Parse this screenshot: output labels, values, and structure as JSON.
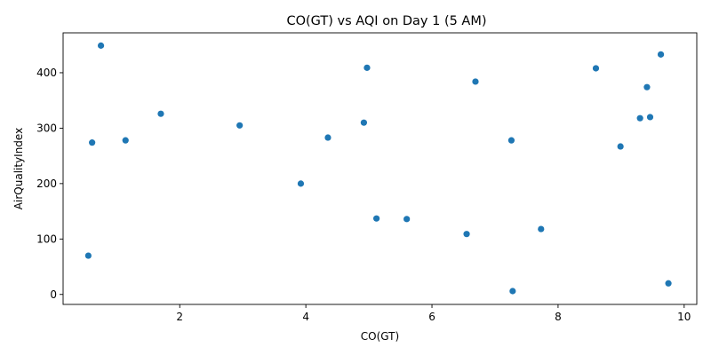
{
  "chart_data": {
    "type": "scatter",
    "title": "CO(GT) vs AQI on Day 1 (5 AM)",
    "xlabel": "CO(GT)",
    "ylabel": "AirQualityIndex",
    "xlim": [
      0.15,
      10.2
    ],
    "ylim": [
      -18,
      472
    ],
    "xticks": [
      2,
      4,
      6,
      8,
      10
    ],
    "yticks": [
      0,
      100,
      200,
      300,
      400
    ],
    "grid": false,
    "legend": "none",
    "color": "#1f77b4",
    "points": [
      {
        "x": 0.55,
        "y": 70
      },
      {
        "x": 0.61,
        "y": 274
      },
      {
        "x": 0.75,
        "y": 449
      },
      {
        "x": 1.14,
        "y": 278
      },
      {
        "x": 1.7,
        "y": 326
      },
      {
        "x": 2.95,
        "y": 305
      },
      {
        "x": 3.92,
        "y": 200
      },
      {
        "x": 4.35,
        "y": 283
      },
      {
        "x": 4.92,
        "y": 310
      },
      {
        "x": 4.97,
        "y": 409
      },
      {
        "x": 5.12,
        "y": 137
      },
      {
        "x": 5.6,
        "y": 136
      },
      {
        "x": 6.55,
        "y": 109
      },
      {
        "x": 6.69,
        "y": 384
      },
      {
        "x": 7.26,
        "y": 278
      },
      {
        "x": 7.28,
        "y": 6
      },
      {
        "x": 7.73,
        "y": 118
      },
      {
        "x": 8.6,
        "y": 408
      },
      {
        "x": 8.99,
        "y": 267
      },
      {
        "x": 9.3,
        "y": 318
      },
      {
        "x": 9.41,
        "y": 374
      },
      {
        "x": 9.46,
        "y": 320
      },
      {
        "x": 9.63,
        "y": 433
      },
      {
        "x": 9.75,
        "y": 20
      }
    ]
  }
}
